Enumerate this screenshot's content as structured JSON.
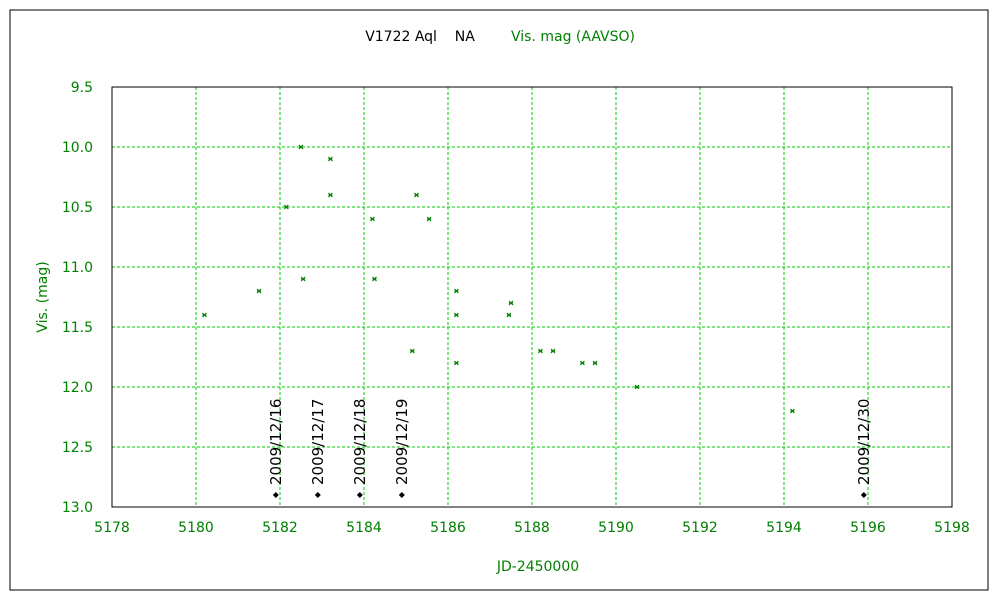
{
  "colors": {
    "data": "#008000",
    "axis_text": "#008000",
    "grid": "#00cc00",
    "frame": "#000000",
    "marker_black": "#000000"
  },
  "chart_data": {
    "type": "scatter",
    "title": "V1722 Aql    NA",
    "legend_label": "Vis. mag (AAVSO)",
    "legend_placement": "top-center",
    "xlabel": "JD-2450000",
    "ylabel": "Vis. (mag)",
    "xlim": [
      5178,
      5198
    ],
    "ylim": [
      9.5,
      13.0
    ],
    "y_inverted": true,
    "grid": true,
    "x_ticks": [
      5178,
      5180,
      5182,
      5184,
      5186,
      5188,
      5190,
      5192,
      5194,
      5196,
      5198
    ],
    "x_tick_labels": [
      "5178",
      "5180",
      "5182",
      "5184",
      "5186",
      "5188",
      "5190",
      "5192",
      "5194",
      "5196",
      "5198"
    ],
    "y_ticks": [
      9.5,
      10.0,
      10.5,
      11.0,
      11.5,
      12.0,
      12.5,
      13.0
    ],
    "y_tick_labels": [
      "9.5",
      "10.0",
      "10.5",
      "11.0",
      "11.5",
      "12.0",
      "12.5",
      "13.0"
    ],
    "series": [
      {
        "name": "Vis. mag (AAVSO)",
        "x": [
          5180.2,
          5181.5,
          5182.15,
          5182.5,
          5182.55,
          5183.2,
          5183.2,
          5184.2,
          5184.25,
          5185.15,
          5185.25,
          5185.55,
          5186.2,
          5186.2,
          5186.2,
          5187.45,
          5187.5,
          5188.2,
          5188.5,
          5189.2,
          5189.5,
          5190.5,
          5194.2
        ],
        "y": [
          11.4,
          11.2,
          10.5,
          10.0,
          11.1,
          10.1,
          10.4,
          10.6,
          11.1,
          11.7,
          10.4,
          10.6,
          11.2,
          11.4,
          11.8,
          11.4,
          11.3,
          11.7,
          11.7,
          11.8,
          11.8,
          12.0,
          12.2
        ]
      }
    ],
    "date_markers": [
      {
        "x": 5181.9,
        "label": "2009/12/16"
      },
      {
        "x": 5182.9,
        "label": "2009/12/17"
      },
      {
        "x": 5183.9,
        "label": "2009/12/18"
      },
      {
        "x": 5184.9,
        "label": "2009/12/19"
      },
      {
        "x": 5195.9,
        "label": "2009/12/30"
      }
    ],
    "date_marker_y": 12.9
  }
}
